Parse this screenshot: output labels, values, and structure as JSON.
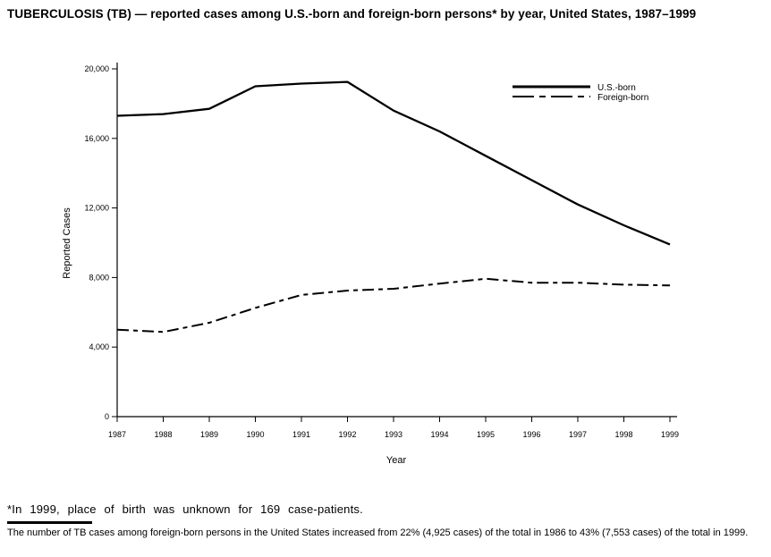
{
  "page": {
    "title": "TUBERCULOSIS (TB) — reported cases among U.S.-born and foreign-born persons* by year, United States, 1987–1999",
    "footnote_star": "*In 1999, place of birth was unknown for 169 case-patients.",
    "footnote_body": "The number of TB cases among foreign-born persons in the United States increased from 22% (4,925 cases) of the total in 1986 to 43% (7,553 cases) of the total in 1999."
  },
  "chart_data": {
    "type": "line",
    "x": [
      "1987",
      "1988",
      "1989",
      "1990",
      "1991",
      "1992",
      "1993",
      "1994",
      "1995",
      "1996",
      "1997",
      "1998",
      "1999"
    ],
    "series": [
      {
        "name": "U.S.-born",
        "line_style": "solid",
        "color": "#000000",
        "values": [
          17300,
          17400,
          17700,
          19000,
          19150,
          19250,
          17600,
          16400,
          15000,
          13600,
          12200,
          11000,
          9900
        ]
      },
      {
        "name": "Foreign-born",
        "line_style": "dash-dot",
        "color": "#000000",
        "values": [
          5000,
          4870,
          5400,
          6250,
          7000,
          7250,
          7350,
          7650,
          7930,
          7700,
          7700,
          7590,
          7550
        ]
      }
    ],
    "title": "",
    "xlabel": "Year",
    "ylabel": "Reported Cases",
    "ylim": [
      0,
      20000
    ],
    "yticks": [
      0,
      4000,
      8000,
      12000,
      16000,
      20000
    ],
    "ytick_labels": [
      "0",
      "4,000",
      "8,000",
      "12,000",
      "16,000",
      "20,000"
    ],
    "legend_position": "top-right",
    "grid": false,
    "background": "#ffffff",
    "line_color": "#000000"
  }
}
